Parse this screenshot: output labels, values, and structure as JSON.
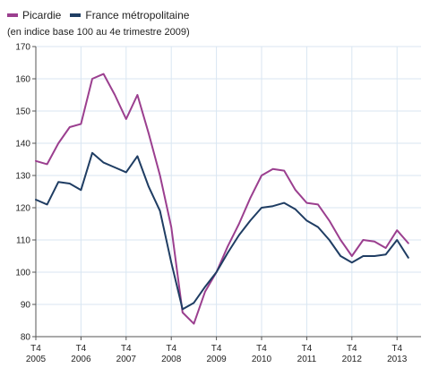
{
  "note": "(en indice base 100 au 4e trimestre 2009)",
  "colors": {
    "picardie": "#9b3f8f",
    "france": "#1f3d63",
    "grid": "#d9e6f2",
    "axis": "#555555"
  },
  "chart_data": {
    "type": "line",
    "title": "",
    "xlabel": "",
    "ylabel": "",
    "ylim": [
      80,
      170
    ],
    "yticks": [
      80,
      90,
      100,
      110,
      120,
      130,
      140,
      150,
      160,
      170
    ],
    "grid": true,
    "legend_placement": "top-left",
    "xticks": [
      {
        "index": 0,
        "line1": "T4",
        "line2": "2005"
      },
      {
        "index": 4,
        "line1": "T4",
        "line2": "2006"
      },
      {
        "index": 8,
        "line1": "T4",
        "line2": "2007"
      },
      {
        "index": 12,
        "line1": "T4",
        "line2": "2008"
      },
      {
        "index": 16,
        "line1": "T4",
        "line2": "2009"
      },
      {
        "index": 20,
        "line1": "T4",
        "line2": "2010"
      },
      {
        "index": 24,
        "line1": "T4",
        "line2": "2011"
      },
      {
        "index": 28,
        "line1": "T4",
        "line2": "2012"
      },
      {
        "index": 32,
        "line1": "T4",
        "line2": "2013"
      }
    ],
    "series": [
      {
        "name": "Picardie",
        "color": "#9b3f8f",
        "values": [
          134.5,
          133.5,
          140,
          145,
          146,
          160,
          161.5,
          155,
          147.5,
          155,
          143,
          130,
          114,
          87.5,
          84,
          94,
          100,
          108,
          115,
          123,
          130,
          132,
          131.5,
          125.5,
          121.5,
          121,
          116,
          110,
          105,
          110,
          109.5,
          107.5,
          113,
          109
        ]
      },
      {
        "name": "France métropolitaine",
        "color": "#1f3d63",
        "values": [
          122.5,
          121,
          128,
          127.5,
          125.5,
          137,
          134,
          132.5,
          131,
          136,
          126.5,
          119,
          103,
          88.5,
          90.5,
          95.5,
          100,
          106,
          111.5,
          116,
          120,
          120.5,
          121.5,
          119.5,
          116,
          114,
          110,
          105,
          103,
          105,
          105,
          105.5,
          110,
          104.5
        ]
      }
    ]
  }
}
